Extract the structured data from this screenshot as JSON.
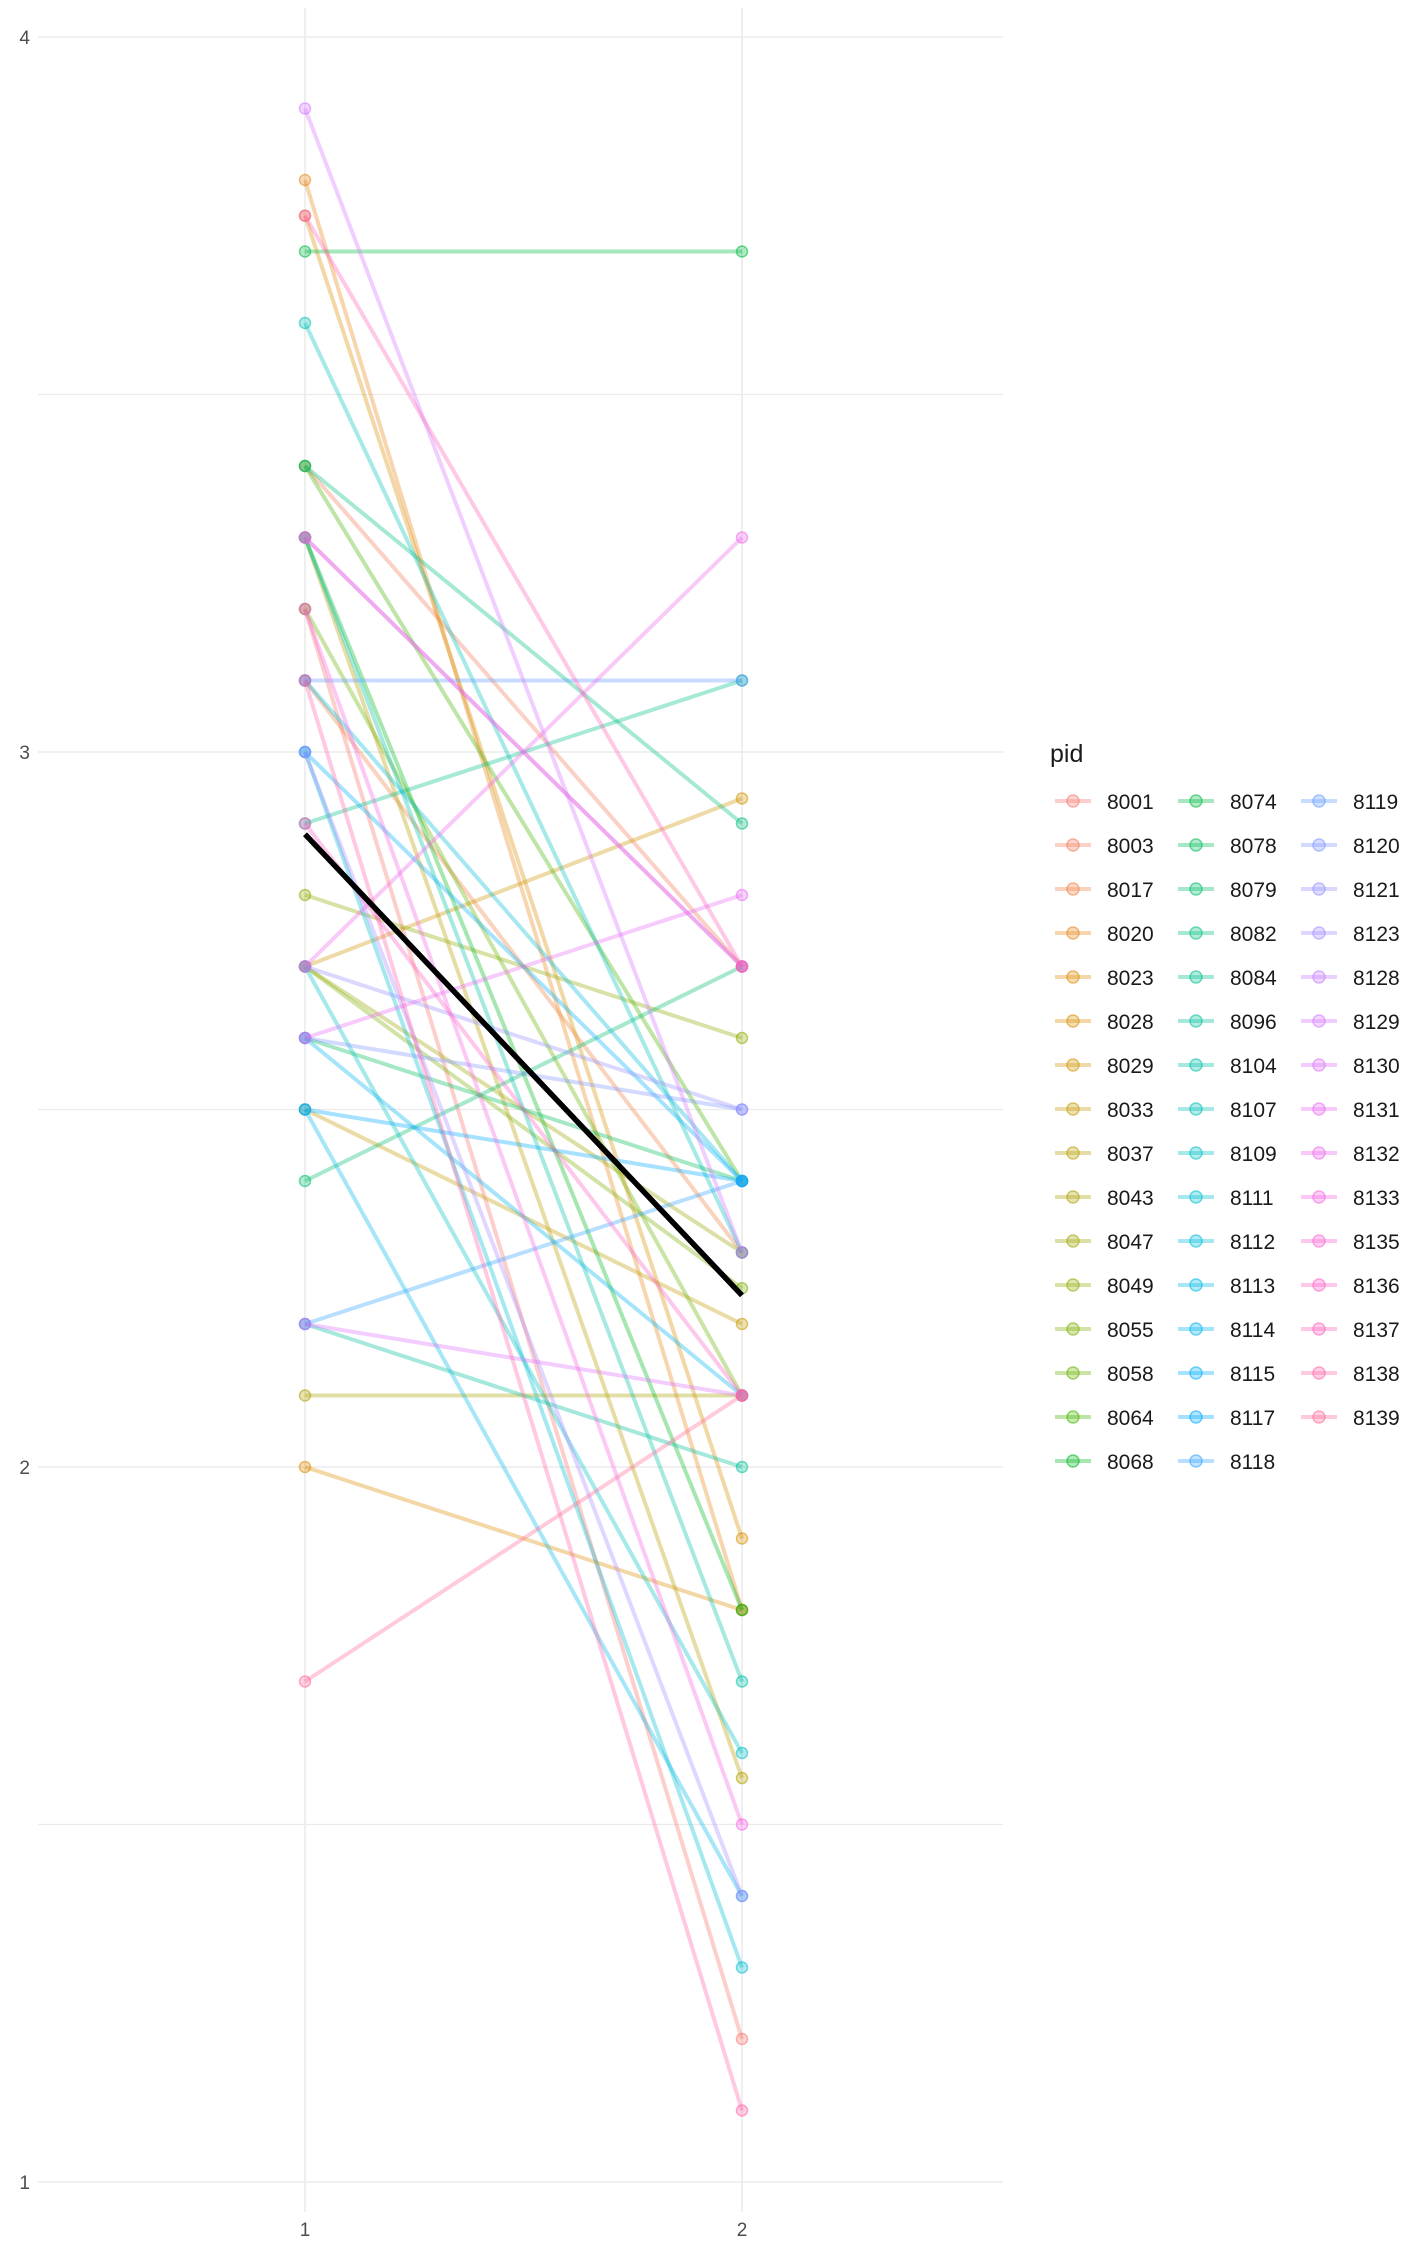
{
  "chart_data": {
    "type": "line",
    "x_ticks": [
      "1",
      "2"
    ],
    "y_ticks": [
      "1",
      "2",
      "3",
      "4"
    ],
    "xlim": [
      0.35,
      2.62
    ],
    "ylim": [
      1,
      4
    ],
    "grid": true,
    "legend": {
      "title": "pid",
      "placement": "right",
      "columns": 3,
      "entries": [
        {
          "label": "8001",
          "color": "#F8766D"
        },
        {
          "label": "8003",
          "color": "#F37B59"
        },
        {
          "label": "8017",
          "color": "#ED8141"
        },
        {
          "label": "8020",
          "color": "#E7861B"
        },
        {
          "label": "8023",
          "color": "#DF8B00"
        },
        {
          "label": "8028",
          "color": "#D89000"
        },
        {
          "label": "8029",
          "color": "#CF9400"
        },
        {
          "label": "8033",
          "color": "#C49A00"
        },
        {
          "label": "8037",
          "color": "#B79F00"
        },
        {
          "label": "8043",
          "color": "#ABA300"
        },
        {
          "label": "8047",
          "color": "#9DA700"
        },
        {
          "label": "8049",
          "color": "#8EAB00"
        },
        {
          "label": "8055",
          "color": "#7CAE00"
        },
        {
          "label": "8058",
          "color": "#66B200"
        },
        {
          "label": "8064",
          "color": "#45B500"
        },
        {
          "label": "8068",
          "color": "#00B81F"
        },
        {
          "label": "8074",
          "color": "#00BA42"
        },
        {
          "label": "8078",
          "color": "#00BC59"
        },
        {
          "label": "8079",
          "color": "#00BE6C"
        },
        {
          "label": "8082",
          "color": "#00BF7D"
        },
        {
          "label": "8084",
          "color": "#00C08D"
        },
        {
          "label": "8096",
          "color": "#00C19C"
        },
        {
          "label": "8104",
          "color": "#00C1AA"
        },
        {
          "label": "8107",
          "color": "#00C0B8"
        },
        {
          "label": "8109",
          "color": "#00BFC4"
        },
        {
          "label": "8111",
          "color": "#00BDD0"
        },
        {
          "label": "8112",
          "color": "#00BBDB"
        },
        {
          "label": "8113",
          "color": "#00B8E5"
        },
        {
          "label": "8114",
          "color": "#00B4EF"
        },
        {
          "label": "8115",
          "color": "#00AFF8"
        },
        {
          "label": "8117",
          "color": "#00A9FF"
        },
        {
          "label": "8118",
          "color": "#35A2FF"
        },
        {
          "label": "8119",
          "color": "#619CFF"
        },
        {
          "label": "8120",
          "color": "#7F96FF"
        },
        {
          "label": "8121",
          "color": "#9590FF"
        },
        {
          "label": "8123",
          "color": "#A58AFF"
        },
        {
          "label": "8128",
          "color": "#C77CFF"
        },
        {
          "label": "8129",
          "color": "#D376FF"
        },
        {
          "label": "8130",
          "color": "#DE71F9"
        },
        {
          "label": "8131",
          "color": "#E76BF3"
        },
        {
          "label": "8132",
          "color": "#EF67EB"
        },
        {
          "label": "8133",
          "color": "#F564E3"
        },
        {
          "label": "8135",
          "color": "#FA62D4"
        },
        {
          "label": "8136",
          "color": "#FD61C7"
        },
        {
          "label": "8137",
          "color": "#FF61B9"
        },
        {
          "label": "8138",
          "color": "#FF63AA"
        },
        {
          "label": "8139",
          "color": "#FF6A98"
        }
      ]
    },
    "series": [
      {
        "name": "8001",
        "color": "#F8766D",
        "x": [
          1,
          2
        ],
        "y": [
          3.2,
          1.2
        ]
      },
      {
        "name": "8003",
        "color": "#F37B59",
        "x": [
          1,
          2
        ],
        "y": [
          3.4,
          2.7
        ]
      },
      {
        "name": "8017",
        "color": "#ED8141",
        "x": [
          1,
          2
        ],
        "y": [
          3.1,
          2.3
        ]
      },
      {
        "name": "8020",
        "color": "#E7861B",
        "x": [
          1,
          2
        ],
        "y": [
          3.8,
          1.8
        ]
      },
      {
        "name": "8023",
        "color": "#DF8B00",
        "x": [
          1,
          2
        ],
        "y": [
          2.0,
          1.8
        ]
      },
      {
        "name": "8028",
        "color": "#D89000",
        "x": [
          1,
          2
        ],
        "y": [
          3.75,
          1.9
        ]
      },
      {
        "name": "8029",
        "color": "#CF9400",
        "x": [
          1,
          2
        ],
        "y": [
          2.7,
          2.935
        ]
      },
      {
        "name": "8033",
        "color": "#C49A00",
        "x": [
          1,
          2
        ],
        "y": [
          2.5,
          2.2
        ]
      },
      {
        "name": "8037",
        "color": "#B79F00",
        "x": [
          1,
          2
        ],
        "y": [
          3.3,
          1.565
        ]
      },
      {
        "name": "8043",
        "color": "#ABA300",
        "x": [
          1,
          2
        ],
        "y": [
          2.1,
          2.1
        ]
      },
      {
        "name": "8047",
        "color": "#9DA700",
        "x": [
          1,
          2
        ],
        "y": [
          2.7,
          2.3
        ]
      },
      {
        "name": "8049",
        "color": "#8EAB00",
        "x": [
          1,
          2
        ],
        "y": [
          2.8,
          2.6
        ]
      },
      {
        "name": "8055",
        "color": "#7CAE00",
        "x": [
          1,
          2
        ],
        "y": [
          2.7,
          2.25
        ]
      },
      {
        "name": "8058",
        "color": "#66B200",
        "x": [
          1,
          2
        ],
        "y": [
          3.2,
          2.1
        ]
      },
      {
        "name": "8064",
        "color": "#45B500",
        "x": [
          1,
          2
        ],
        "y": [
          3.4,
          2.4
        ]
      },
      {
        "name": "8068",
        "color": "#00B81F",
        "x": [
          1,
          2
        ],
        "y": [
          3.3,
          1.8
        ]
      },
      {
        "name": "8074",
        "color": "#00BA42",
        "x": [
          1,
          2
        ],
        "y": [
          3.7,
          3.7
        ]
      },
      {
        "name": "8078",
        "color": "#00BC59",
        "x": [
          1,
          2
        ],
        "y": [
          2.6,
          2.4
        ]
      },
      {
        "name": "8079",
        "color": "#00BE6C",
        "x": [
          1,
          2
        ],
        "y": [
          2.4,
          2.7
        ]
      },
      {
        "name": "8082",
        "color": "#00BF7D",
        "x": [
          1,
          2
        ],
        "y": [
          3.4,
          2.9
        ]
      },
      {
        "name": "8084",
        "color": "#00C08D",
        "x": [
          1,
          2
        ],
        "y": [
          2.9,
          3.1
        ]
      },
      {
        "name": "8096",
        "color": "#00C19C",
        "x": [
          1,
          2
        ],
        "y": [
          2.2,
          2.0
        ]
      },
      {
        "name": "8104",
        "color": "#00C1AA",
        "x": [
          1,
          2
        ],
        "y": [
          3.3,
          1.7
        ]
      },
      {
        "name": "8107",
        "color": "#00C0B8",
        "x": [
          1,
          2
        ],
        "y": [
          3.6,
          2.3
        ]
      },
      {
        "name": "8109",
        "color": "#00BFC4",
        "x": [
          1,
          2
        ],
        "y": [
          2.7,
          1.6
        ]
      },
      {
        "name": "8111",
        "color": "#00BDD0",
        "x": [
          1,
          2
        ],
        "y": [
          3.0,
          1.3
        ]
      },
      {
        "name": "8112",
        "color": "#00BBDB",
        "x": [
          1,
          2
        ],
        "y": [
          3.1,
          2.4
        ]
      },
      {
        "name": "8113",
        "color": "#00B8E5",
        "x": [
          1,
          2
        ],
        "y": [
          2.5,
          1.4
        ]
      },
      {
        "name": "8114",
        "color": "#00B4EF",
        "x": [
          1,
          2
        ],
        "y": [
          2.6,
          2.1
        ]
      },
      {
        "name": "8115",
        "color": "#00AFF8",
        "x": [
          1,
          2
        ],
        "y": [
          3.0,
          2.4
        ]
      },
      {
        "name": "8117",
        "color": "#00A9FF",
        "x": [
          1,
          2
        ],
        "y": [
          2.5,
          2.4
        ]
      },
      {
        "name": "8118",
        "color": "#35A2FF",
        "x": [
          1,
          2
        ],
        "y": [
          2.2,
          2.4
        ]
      },
      {
        "name": "8119",
        "color": "#619CFF",
        "x": [
          1,
          2
        ],
        "y": [
          3.1,
          3.1
        ]
      },
      {
        "name": "8120",
        "color": "#7F96FF",
        "x": [
          1,
          2
        ],
        "y": [
          2.6,
          2.5
        ]
      },
      {
        "name": "8121",
        "color": "#9590FF",
        "x": [
          1,
          2
        ],
        "y": [
          2.7,
          2.5
        ]
      },
      {
        "name": "8123",
        "color": "#A58AFF",
        "x": [
          1,
          2
        ],
        "y": [
          3.0,
          1.4
        ]
      },
      {
        "name": "8128",
        "color": "#C77CFF",
        "x": [
          1,
          2
        ],
        "y": [
          3.3,
          2.7
        ]
      },
      {
        "name": "8129",
        "color": "#D376FF",
        "x": [
          1,
          2
        ],
        "y": [
          3.9,
          2.3
        ]
      },
      {
        "name": "8130",
        "color": "#DE71F9",
        "x": [
          1,
          2
        ],
        "y": [
          2.2,
          2.1
        ]
      },
      {
        "name": "8131",
        "color": "#E76BF3",
        "x": [
          1,
          2
        ],
        "y": [
          2.6,
          2.8
        ]
      },
      {
        "name": "8132",
        "color": "#EF67EB",
        "x": [
          1,
          2
        ],
        "y": [
          2.7,
          3.3
        ]
      },
      {
        "name": "8133",
        "color": "#F564E3",
        "x": [
          1,
          2
        ],
        "y": [
          3.2,
          1.5
        ]
      },
      {
        "name": "8135",
        "color": "#FA62D4",
        "x": [
          1,
          2
        ],
        "y": [
          3.3,
          2.7
        ]
      },
      {
        "name": "8136",
        "color": "#FD61C7",
        "x": [
          1,
          2
        ],
        "y": [
          2.9,
          2.1
        ]
      },
      {
        "name": "8137",
        "color": "#FF61B9",
        "x": [
          1,
          2
        ],
        "y": [
          3.75,
          2.7
        ]
      },
      {
        "name": "8138",
        "color": "#FF63AA",
        "x": [
          1,
          2
        ],
        "y": [
          3.1,
          1.1
        ]
      },
      {
        "name": "8139",
        "color": "#FF6A98",
        "x": [
          1,
          2
        ],
        "y": [
          1.7,
          2.1
        ]
      }
    ],
    "mean_line": {
      "color": "#000000",
      "x": [
        1,
        2
      ],
      "y": [
        2.885,
        2.24
      ]
    }
  }
}
